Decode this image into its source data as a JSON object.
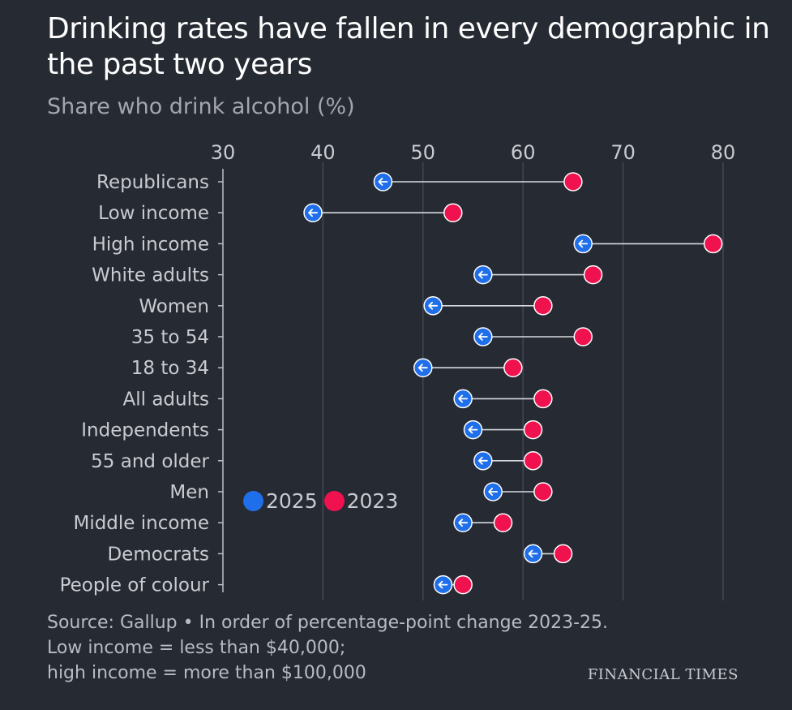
{
  "title": "Drinking rates have fallen in every demographic in the past two years",
  "subtitle": "Share who drink alcohol (%)",
  "legend": {
    "series_2025": "2025",
    "series_2023": "2023"
  },
  "colors": {
    "c2025": "#1f6feb",
    "c2023": "#f0124f",
    "background": "#262a33",
    "grid": "#4a4e58",
    "text": "#c9cbd0"
  },
  "footer": {
    "line1": "Source: Gallup • In order of percentage-point change 2023-25.",
    "line2": "Low income = less than $40,000;",
    "line3": "high income = more than $100,000"
  },
  "brand": "FINANCIAL TIMES",
  "chart_data": {
    "type": "dumbbell",
    "title": "Drinking rates have fallen in every demographic in the past two years",
    "subtitle": "Share who drink alcohol (%)",
    "xlim": [
      30,
      80
    ],
    "xticks": [
      30,
      40,
      50,
      60,
      70,
      80
    ],
    "grid": true,
    "legend_position": "middle-left",
    "categories": [
      "Republicans",
      "Low income",
      "High income",
      "White adults",
      "Women",
      "35 to 54",
      "18 to 34",
      "All adults",
      "Independents",
      "55 and older",
      "Men",
      "Middle income",
      "Democrats",
      "People of colour"
    ],
    "series": [
      {
        "name": "2023",
        "values": [
          65,
          53,
          79,
          67,
          62,
          66,
          59,
          62,
          61,
          61,
          62,
          58,
          64,
          54
        ]
      },
      {
        "name": "2025",
        "values": [
          46,
          39,
          66,
          56,
          51,
          56,
          50,
          54,
          55,
          56,
          57,
          54,
          61,
          52
        ]
      }
    ]
  }
}
